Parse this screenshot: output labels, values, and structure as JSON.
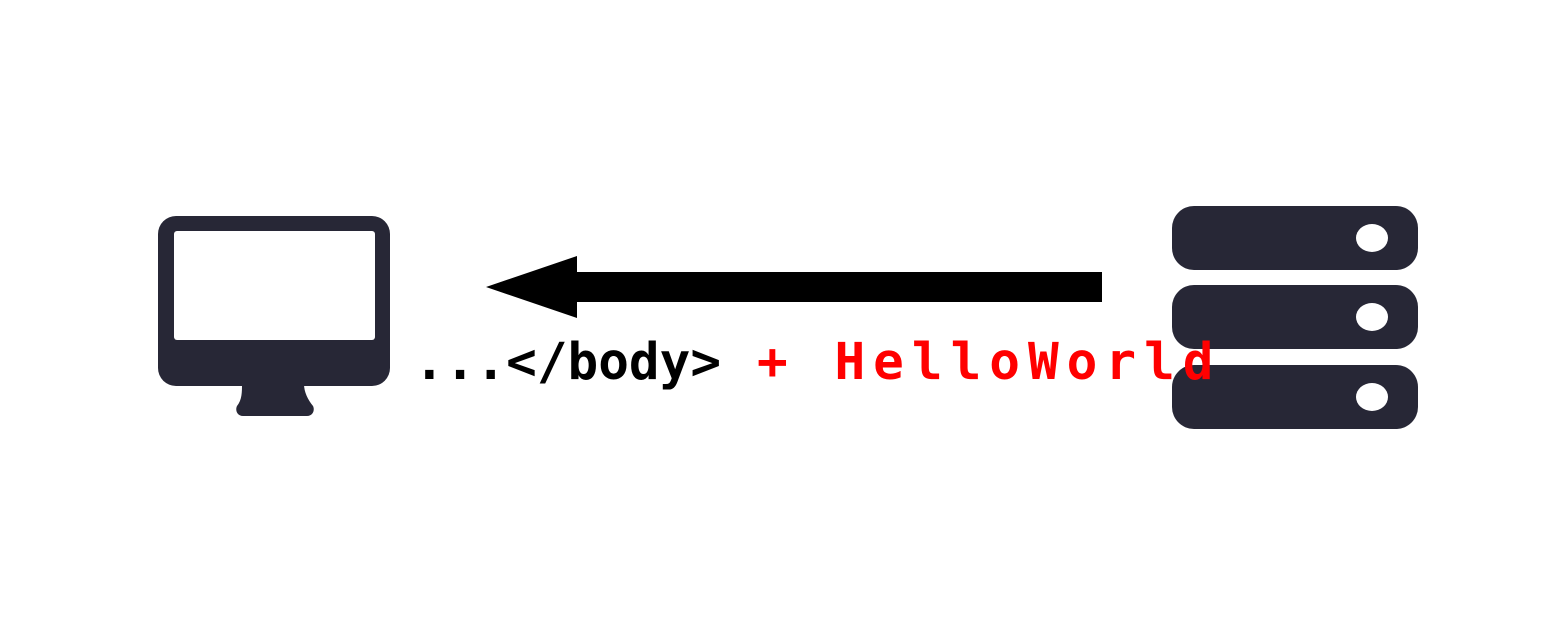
{
  "diagram": {
    "payload_prefix": "...</body>",
    "payload_suffix": "+ HelloWorld",
    "client_icon": "desktop-monitor-icon",
    "server_icon": "server-stack-icon",
    "arrow_direction": "server-to-client"
  },
  "colors": {
    "icon": "#272736",
    "arrow": "#000000",
    "text": "#000000",
    "injected_text": "#ff0000",
    "background": "#ffffff"
  }
}
